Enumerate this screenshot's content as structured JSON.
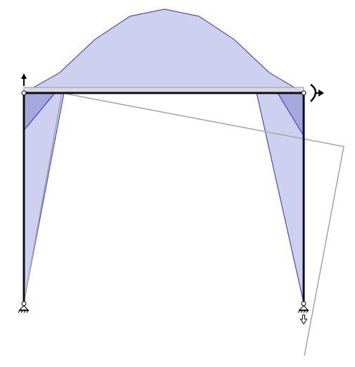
{
  "diagram": {
    "type": "frame-bending-moment",
    "colors": {
      "moment_fill": "#c9cbee",
      "moment_fill_dark": "#a5a8dd",
      "moment_outline": "#2b2fc8",
      "frame": "#0b0b1e",
      "deformed": "#b0b0b0",
      "beam_band": "#d2d2d2",
      "support": "#000000"
    },
    "supports": [
      {
        "name": "support-left",
        "type": "pin"
      },
      {
        "name": "support-right",
        "type": "pin"
      }
    ],
    "loads": [
      {
        "name": "reaction-arrow-up-left",
        "icon": "arrow-up-icon"
      },
      {
        "name": "moment-arrow-right",
        "icon": "curved-arrow-icon"
      },
      {
        "name": "reaction-arrow-down-right",
        "icon": "arrow-down-outline-icon"
      }
    ]
  }
}
